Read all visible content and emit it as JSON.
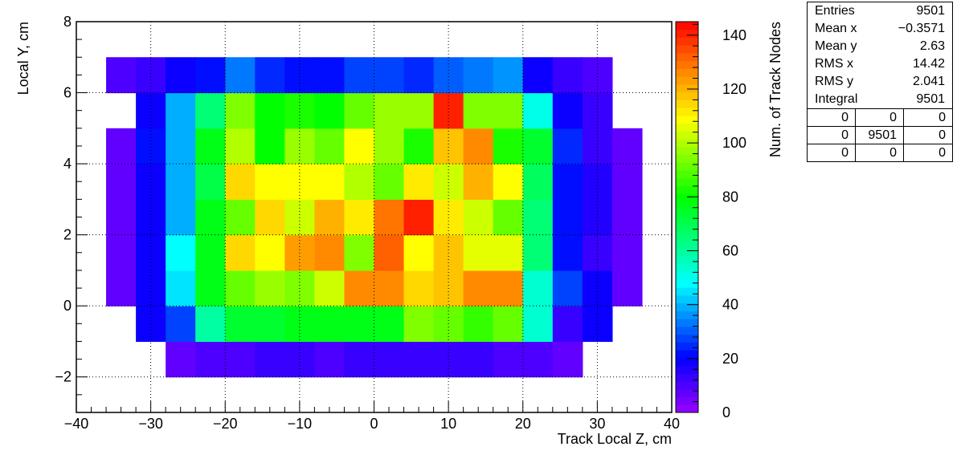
{
  "chart_data": {
    "type": "heatmap",
    "xlabel": "Track Local Z, cm",
    "ylabel": "Local Y, cm",
    "zlabel": "Num. of Track Nodes",
    "xlim": [
      -40,
      40
    ],
    "ylim": [
      -3,
      8
    ],
    "zlim": [
      0,
      145
    ],
    "xticks": [
      -40,
      -30,
      -20,
      -10,
      0,
      10,
      20,
      30,
      40
    ],
    "xtick_labels": [
      "−40",
      "−30",
      "−20",
      "−10",
      "0",
      "10",
      "20",
      "30",
      "40"
    ],
    "yticks": [
      -2,
      0,
      2,
      4,
      6,
      8
    ],
    "ytick_labels": [
      "−2",
      "0",
      "2",
      "4",
      "6",
      "8"
    ],
    "zticks": [
      0,
      20,
      40,
      60,
      80,
      100,
      120,
      140
    ],
    "ztick_labels": [
      "0",
      "20",
      "40",
      "60",
      "80",
      "100",
      "120",
      "140"
    ],
    "grid": true,
    "x_bin_edges": [
      -36,
      -32,
      -28,
      -24,
      -20,
      -16,
      -12,
      -8,
      -4,
      0,
      4,
      8,
      12,
      16,
      20,
      24,
      28,
      32,
      36
    ],
    "y_bin_edges": [
      -2,
      -1,
      0,
      1,
      2,
      3,
      4,
      5,
      6,
      7
    ],
    "values": [
      [
        0,
        0,
        8,
        10,
        10,
        12,
        12,
        10,
        12,
        12,
        12,
        12,
        14,
        10,
        10,
        8,
        0,
        0
      ],
      [
        0,
        20,
        28,
        60,
        75,
        75,
        78,
        78,
        78,
        78,
        95,
        90,
        85,
        90,
        55,
        12,
        20,
        0
      ],
      [
        8,
        18,
        45,
        78,
        90,
        98,
        95,
        104,
        127,
        127,
        115,
        116,
        127,
        127,
        55,
        28,
        20,
        8
      ],
      [
        8,
        18,
        48,
        78,
        115,
        108,
        123,
        127,
        93,
        133,
        108,
        117,
        107,
        107,
        65,
        22,
        14,
        8
      ],
      [
        8,
        18,
        38,
        78,
        92,
        115,
        104,
        120,
        112,
        128,
        140,
        113,
        103,
        92,
        66,
        22,
        16,
        8
      ],
      [
        8,
        18,
        40,
        72,
        115,
        110,
        108,
        108,
        100,
        90,
        113,
        102,
        120,
        110,
        68,
        22,
        16,
        8
      ],
      [
        8,
        22,
        38,
        78,
        100,
        80,
        98,
        92,
        108,
        98,
        82,
        118,
        127,
        82,
        74,
        26,
        14,
        8
      ],
      [
        0,
        18,
        38,
        66,
        95,
        80,
        84,
        80,
        92,
        98,
        98,
        140,
        95,
        95,
        50,
        20,
        14,
        0
      ],
      [
        10,
        12,
        20,
        22,
        32,
        24,
        22,
        22,
        28,
        28,
        24,
        30,
        34,
        36,
        20,
        12,
        10,
        0
      ]
    ]
  },
  "stats": {
    "rows": [
      {
        "label": "Entries",
        "value": "9501"
      },
      {
        "label": "Mean x",
        "value": "−0.3571"
      },
      {
        "label": "Mean y",
        "value": "2.63"
      },
      {
        "label": "RMS x",
        "value": "14.42"
      },
      {
        "label": "RMS y",
        "value": "2.041"
      },
      {
        "label": "Integral",
        "value": "9501"
      }
    ],
    "cells": [
      "0",
      "0",
      "0",
      "0",
      "9501",
      "0",
      "0",
      "0",
      "0"
    ]
  }
}
